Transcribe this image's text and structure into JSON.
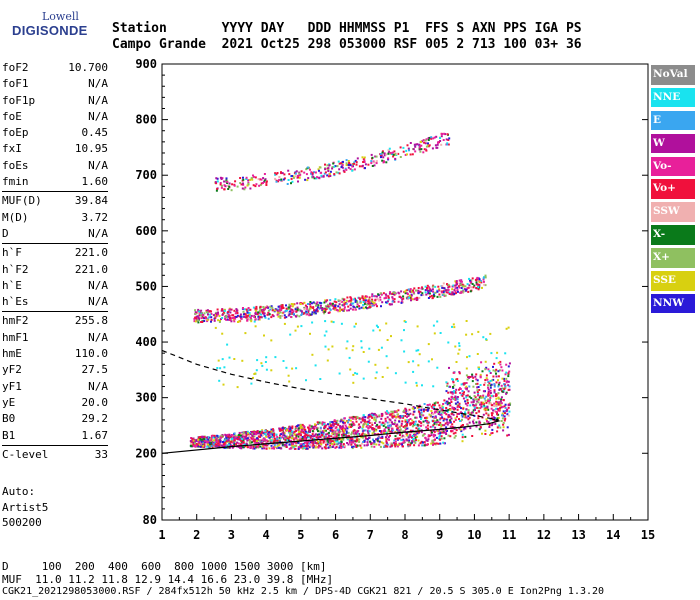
{
  "logo": {
    "line1": "Lowell",
    "line2": "DIGISONDE"
  },
  "header": {
    "line1": "Station       YYYY DAY   DDD HHMMSS P1  FFS S AXN PPS IGA PS",
    "line2": "Campo Grande  2021 Oct25 298 053000 RSF 005 2 713 100 03+ 36"
  },
  "params_groups": [
    [
      {
        "k": "foF2",
        "v": "10.700"
      },
      {
        "k": "foF1",
        "v": "N/A"
      },
      {
        "k": "foF1p",
        "v": "N/A"
      },
      {
        "k": "foE",
        "v": "N/A"
      },
      {
        "k": "foEp",
        "v": "0.45"
      },
      {
        "k": "fxI",
        "v": "10.95"
      },
      {
        "k": "foEs",
        "v": "N/A"
      },
      {
        "k": "fmin",
        "v": "1.60"
      }
    ],
    [
      {
        "k": "MUF(D)",
        "v": "39.84"
      },
      {
        "k": "M(D)",
        "v": "3.72"
      },
      {
        "k": "D",
        "v": "N/A"
      }
    ],
    [
      {
        "k": "h`F",
        "v": "221.0"
      },
      {
        "k": "h`F2",
        "v": "221.0"
      },
      {
        "k": "h`E",
        "v": "N/A"
      },
      {
        "k": "h`Es",
        "v": "N/A"
      }
    ],
    [
      {
        "k": "hmF2",
        "v": "255.8"
      },
      {
        "k": "hmF1",
        "v": "N/A"
      },
      {
        "k": "hmE",
        "v": "110.0"
      },
      {
        "k": "yF2",
        "v": "27.5"
      },
      {
        "k": "yF1",
        "v": "N/A"
      },
      {
        "k": "yE",
        "v": "20.0"
      },
      {
        "k": "B0",
        "v": "29.2"
      },
      {
        "k": "B1",
        "v": "1.67"
      }
    ],
    [
      {
        "k": "C-level",
        "v": "33"
      }
    ]
  ],
  "auto": {
    "l1": "Auto:",
    "l2": "Artist5",
    "l3": "500200"
  },
  "legend": [
    {
      "label": "NoVal",
      "color": "#8c8c8c"
    },
    {
      "label": "NNE",
      "color": "#19e3ef"
    },
    {
      "label": "E",
      "color": "#3aa6f0"
    },
    {
      "label": "W",
      "color": "#b0109c"
    },
    {
      "label": "Vo-",
      "color": "#e8209a"
    },
    {
      "label": "Vo+",
      "color": "#f0103c"
    },
    {
      "label": "SSW",
      "color": "#f0b0b0"
    },
    {
      "label": "X-",
      "color": "#0a7a1a"
    },
    {
      "label": "X+",
      "color": "#8fc060"
    },
    {
      "label": "SSE",
      "color": "#d8d010"
    },
    {
      "label": "NNW",
      "color": "#2a1ad8"
    }
  ],
  "bottom": {
    "line1": "D     100  200  400  600  800 1000 1500 3000 [km]",
    "line2": "MUF  11.0 11.2 11.8 12.9 14.4 16.6 23.0 39.8 [MHz]",
    "line3": "CGK21_2021298053000.RSF / 284fx512h 50 kHz 2.5 km / DPS-4D CGK21 821 / 20.5 S 305.0 E Ion2Png 1.3.20"
  },
  "chart_data": {
    "type": "scatter",
    "xlim": [
      1,
      15
    ],
    "ylim": [
      80,
      900
    ],
    "xticks": [
      1,
      2,
      3,
      4,
      5,
      6,
      7,
      8,
      9,
      10,
      11,
      12,
      13,
      14,
      15
    ],
    "yticks": [
      80,
      200,
      300,
      400,
      500,
      600,
      700,
      800,
      900
    ],
    "bands": [
      {
        "name": "O-trace 1st hop",
        "x0": 1.8,
        "x1": 11.0,
        "y0": 222,
        "y1": 315
      },
      {
        "name": "2nd hop",
        "x0": 1.9,
        "x1": 10.3,
        "y0": 448,
        "y1": 560
      },
      {
        "name": "3rd hop",
        "x0": 2.5,
        "x1": 9.3,
        "y0": 685,
        "y1": 840
      }
    ],
    "profile_solid": [
      [
        1,
        200
      ],
      [
        3,
        212
      ],
      [
        5,
        222
      ],
      [
        7,
        232
      ],
      [
        8,
        238
      ],
      [
        9,
        243
      ],
      [
        9.8,
        248
      ],
      [
        10.4,
        253
      ],
      [
        10.7,
        258
      ],
      [
        10.5,
        262
      ]
    ],
    "profile_dashed": [
      [
        1,
        385
      ],
      [
        2,
        360
      ],
      [
        3,
        342
      ],
      [
        4,
        328
      ],
      [
        5,
        316
      ],
      [
        6,
        306
      ],
      [
        7,
        298
      ],
      [
        8,
        289
      ],
      [
        9,
        278
      ],
      [
        10,
        268
      ],
      [
        10.7,
        260
      ]
    ]
  }
}
